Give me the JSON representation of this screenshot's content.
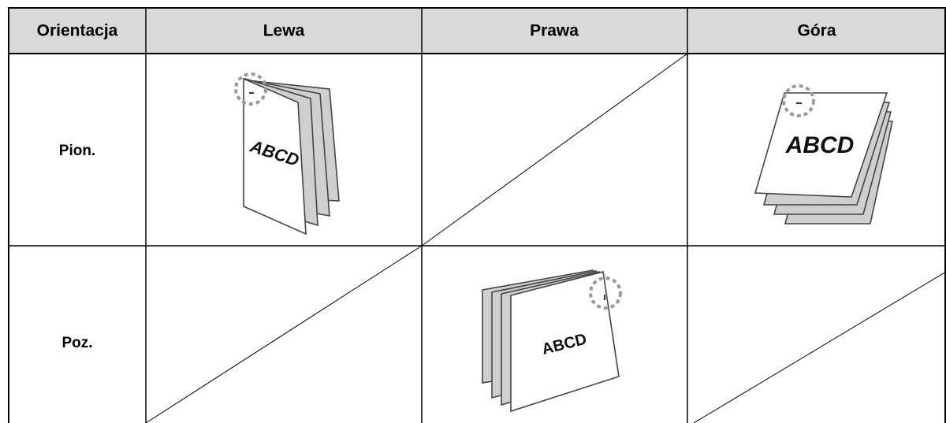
{
  "table": {
    "header": [
      "Orientacja",
      "Lewa",
      "Prawa",
      "Góra"
    ],
    "rows": [
      [
        "Pion.",
        "ABCD",
        null,
        "ABCD"
      ],
      [
        "Poz.",
        null,
        "ABCD",
        null
      ]
    ]
  }
}
